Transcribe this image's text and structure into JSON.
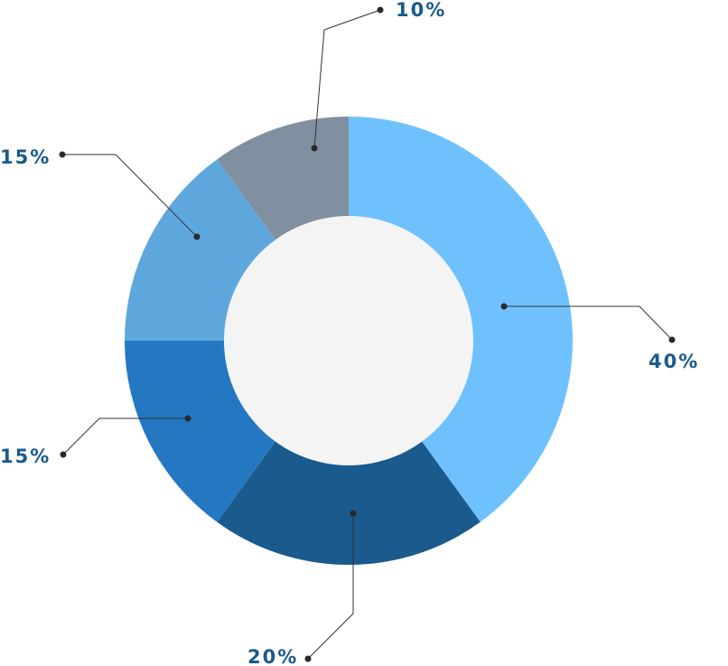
{
  "chart_data": {
    "type": "pie",
    "donut": true,
    "categories": [
      "",
      "",
      "",
      "",
      ""
    ],
    "values": [
      40,
      20,
      15,
      15,
      10
    ],
    "labels": [
      "40%",
      "20%",
      "15%",
      "15%",
      "10%"
    ],
    "colors": [
      "#6fc1fd",
      "#1a5a8c",
      "#2478c2",
      "#5ea7dd",
      "#8090a0"
    ],
    "title": "",
    "legend": "none",
    "center_color": "#f4f4f5"
  }
}
